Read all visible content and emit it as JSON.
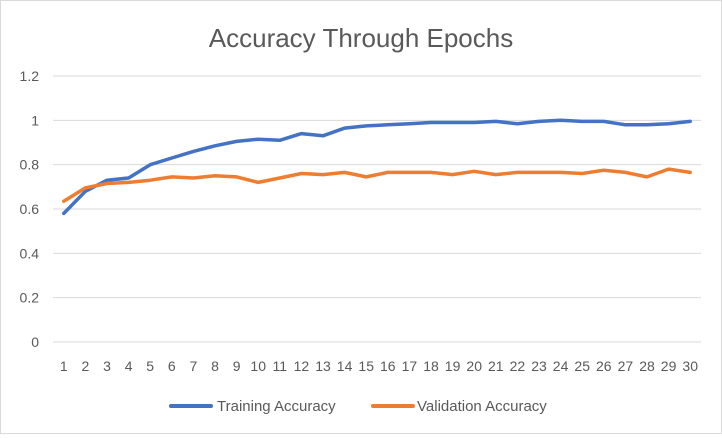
{
  "chart_data": {
    "type": "line",
    "title": "Accuracy Through Epochs",
    "xlabel": "",
    "ylabel": "",
    "categories": [
      "1",
      "2",
      "3",
      "4",
      "5",
      "6",
      "7",
      "8",
      "9",
      "10",
      "11",
      "12",
      "13",
      "14",
      "15",
      "16",
      "17",
      "18",
      "19",
      "20",
      "21",
      "22",
      "23",
      "24",
      "25",
      "26",
      "27",
      "28",
      "29",
      "30"
    ],
    "yticks": [
      "0",
      "0.2",
      "0.4",
      "0.6",
      "0.8",
      "1",
      "1.2"
    ],
    "ylim": [
      0,
      1.2
    ],
    "grid": true,
    "legend_position": "bottom",
    "series": [
      {
        "name": "Training Accuracy",
        "color": "#4472C4",
        "values": [
          0.58,
          0.68,
          0.73,
          0.74,
          0.8,
          0.83,
          0.86,
          0.885,
          0.905,
          0.915,
          0.91,
          0.94,
          0.93,
          0.965,
          0.975,
          0.98,
          0.985,
          0.99,
          0.99,
          0.99,
          0.995,
          0.985,
          0.995,
          1.0,
          0.995,
          0.995,
          0.98,
          0.98,
          0.985,
          0.995
        ]
      },
      {
        "name": "Validation Accuracy",
        "color": "#ED7D31",
        "values": [
          0.635,
          0.695,
          0.715,
          0.72,
          0.73,
          0.745,
          0.74,
          0.75,
          0.745,
          0.72,
          0.74,
          0.76,
          0.755,
          0.765,
          0.745,
          0.765,
          0.765,
          0.765,
          0.755,
          0.77,
          0.755,
          0.765,
          0.765,
          0.765,
          0.76,
          0.775,
          0.765,
          0.745,
          0.78,
          0.765
        ]
      }
    ]
  }
}
